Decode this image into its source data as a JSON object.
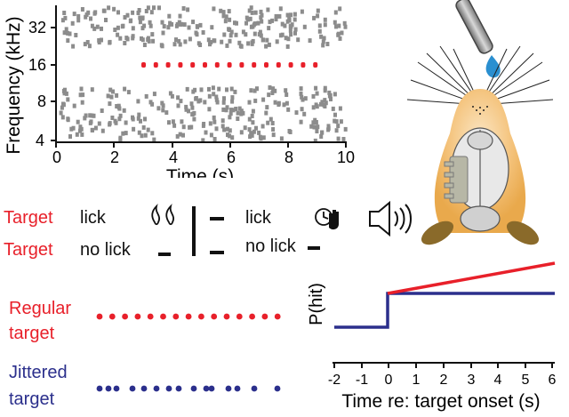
{
  "raster": {
    "ylabel": "Frequency (kHz)",
    "xlabel": "Time (s)",
    "y_ticks": [
      "4",
      "8",
      "16",
      "32"
    ],
    "x_ticks": [
      "0",
      "2",
      "4",
      "6",
      "8",
      "10"
    ],
    "colors": {
      "distractor": "#8c8c8c",
      "target": "#e8202a"
    }
  },
  "task": {
    "row1": {
      "target": "Target",
      "action": "lick",
      "outcome_action": "lick"
    },
    "row2": {
      "target": "Target",
      "action": "no lick",
      "outcome_action": "no lick"
    },
    "icons": [
      "water-drops-icon",
      "clock-timeout-icon",
      "hand-icon",
      "speaker-icon"
    ]
  },
  "conditions": {
    "regular": {
      "line1": "Regular",
      "line2": "target",
      "color": "#e8202a"
    },
    "jittered": {
      "line1": "Jittered",
      "line2": "target",
      "color": "#2b2f8c"
    }
  },
  "phit": {
    "ylabel": "P(hit)",
    "xlabel": "Time re: target onset (s)",
    "x_ticks": [
      "-2",
      "-1",
      "0",
      "1",
      "2",
      "3",
      "4",
      "5",
      "6"
    ],
    "colors": {
      "regular": "#e8202a",
      "jittered": "#2b2f8c"
    }
  },
  "illustration": {
    "subject": "mouse-head-with-water-spout"
  }
}
